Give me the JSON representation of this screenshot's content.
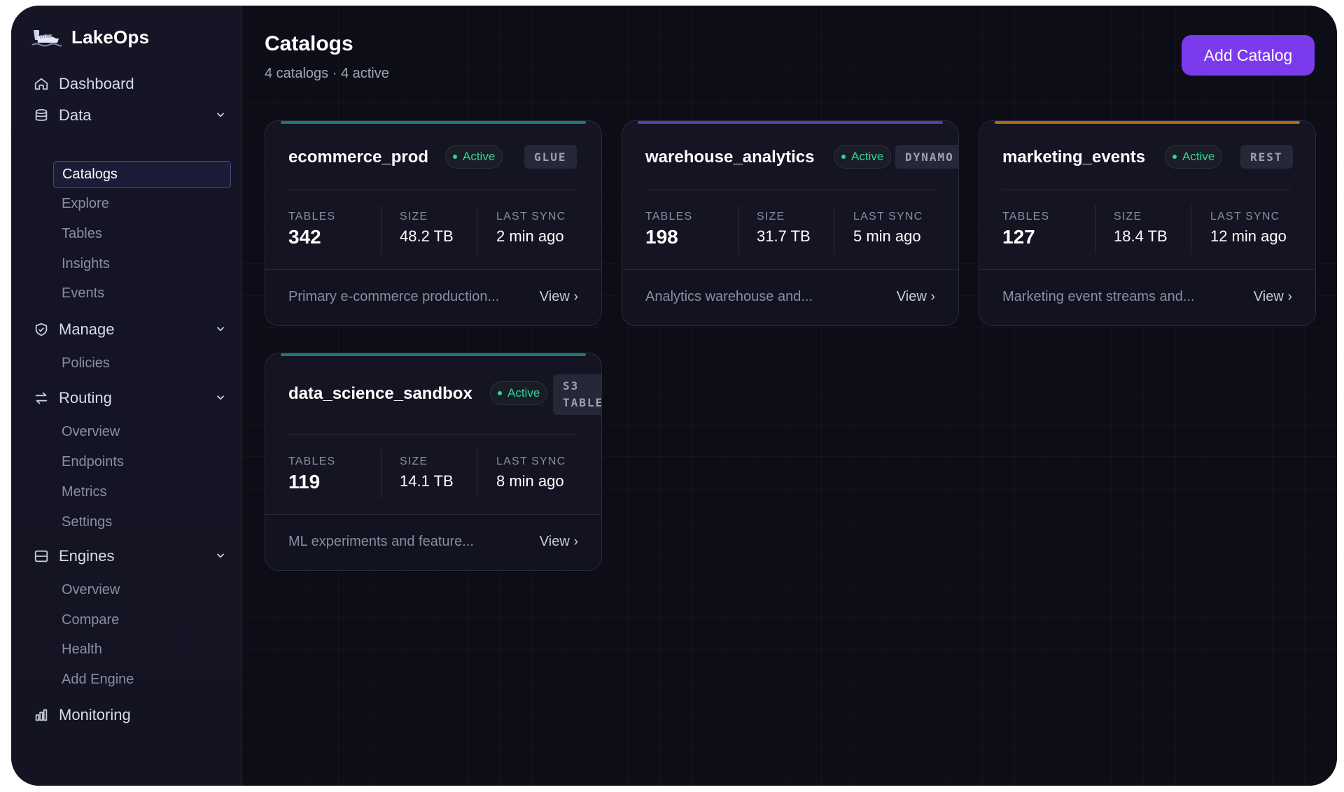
{
  "app": {
    "name": "LakeOps"
  },
  "sidebar": {
    "dashboard": "Dashboard",
    "data": {
      "label": "Data",
      "items": [
        "Catalogs",
        "Explore",
        "Tables",
        "Insights",
        "Events"
      ]
    },
    "manage": {
      "label": "Manage",
      "items": [
        "Policies"
      ]
    },
    "routing": {
      "label": "Routing",
      "items": [
        "Overview",
        "Endpoints",
        "Metrics",
        "Settings"
      ]
    },
    "engines": {
      "label": "Engines",
      "items": [
        "Overview",
        "Compare",
        "Health",
        "Add Engine"
      ]
    },
    "monitoring": "Monitoring",
    "active_item": "Catalogs"
  },
  "header": {
    "title": "Catalogs",
    "subtitle": "4 catalogs · 4 active",
    "add_button": "Add Catalog"
  },
  "labels": {
    "tables": "TABLES",
    "size": "SIZE",
    "last_sync": "LAST SYNC",
    "view": "View ›"
  },
  "catalogs": [
    {
      "name": "ecommerce_prod",
      "status": "Active",
      "type": "GLUE",
      "tables": "342",
      "size": "48.2 TB",
      "last_sync": "2 min ago",
      "description": "Primary e-commerce production...",
      "accent": "#1f7a74"
    },
    {
      "name": "warehouse_analytics",
      "status": "Active",
      "type": "DYNAMO",
      "tables": "198",
      "size": "31.7 TB",
      "last_sync": "5 min ago",
      "description": "Analytics warehouse and...",
      "accent": "#5b3bb0"
    },
    {
      "name": "marketing_events",
      "status": "Active",
      "type": "REST",
      "tables": "127",
      "size": "18.4 TB",
      "last_sync": "12 min ago",
      "description": "Marketing event streams and...",
      "accent": "#b06a12"
    },
    {
      "name": "data_science_sandbox",
      "status": "Active",
      "type_line1": "S3",
      "type_line2": "TABLE",
      "tables": "119",
      "size": "14.1 TB",
      "last_sync": "8 min ago",
      "description": "ML experiments and feature...",
      "accent": "#1f7a74"
    }
  ]
}
